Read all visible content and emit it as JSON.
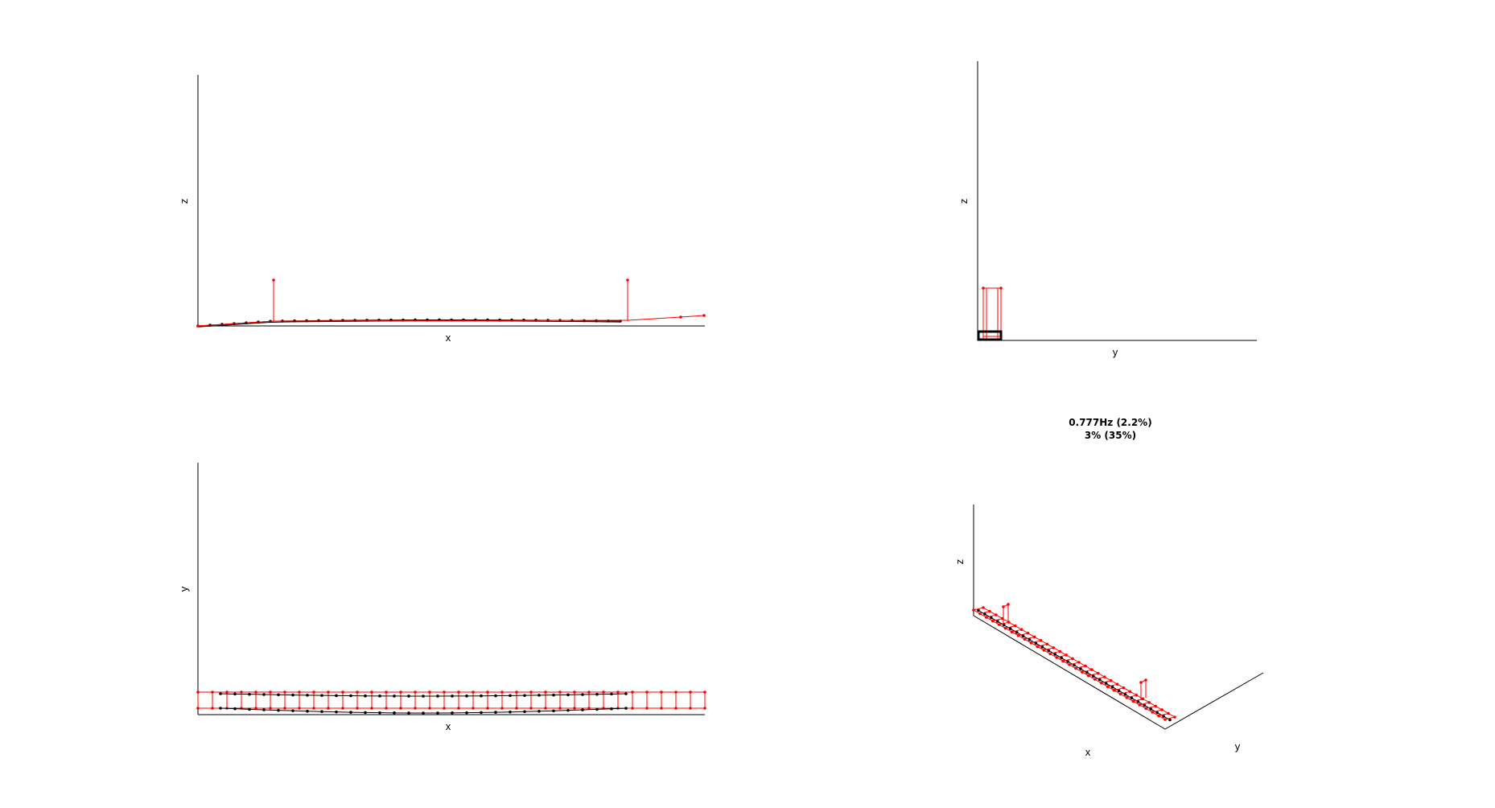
{
  "views": {
    "xz": {
      "xlabel": "x",
      "ylabel": "z"
    },
    "yz": {
      "xlabel": "y",
      "ylabel": "z"
    },
    "xy": {
      "xlabel": "x",
      "ylabel": "y"
    },
    "iso": {
      "xlabel": "x",
      "ylabel": "y",
      "zlabel": "z"
    }
  },
  "mode_info": {
    "frequency": "0.777Hz (2.2%)",
    "damping": "3% (35%)"
  },
  "colors": {
    "axis": "#000000",
    "undeformed": "#000000",
    "deformed": "#ff0000"
  }
}
